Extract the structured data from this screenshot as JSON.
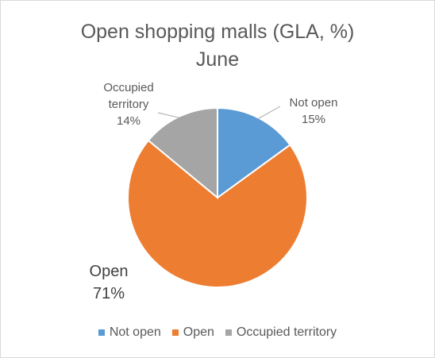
{
  "chart_data": {
    "type": "pie",
    "title": [
      "Open shopping malls (GLA, %)",
      "June"
    ],
    "categories": [
      "Not open",
      "Open",
      "Occupied territory"
    ],
    "values": [
      15,
      71,
      14
    ],
    "value_labels": [
      "15%",
      "71%",
      "14%"
    ],
    "data_label_lines": [
      [
        "Not open",
        "15%"
      ],
      [
        "Open",
        "71%"
      ],
      [
        "Occupied",
        "territory",
        "14%"
      ]
    ],
    "colors": [
      "#5b9bd5",
      "#ed7d31",
      "#a5a5a5"
    ],
    "legend": {
      "position": "bottom",
      "entries": [
        "Not open",
        "Open",
        "Occupied territory"
      ]
    }
  }
}
